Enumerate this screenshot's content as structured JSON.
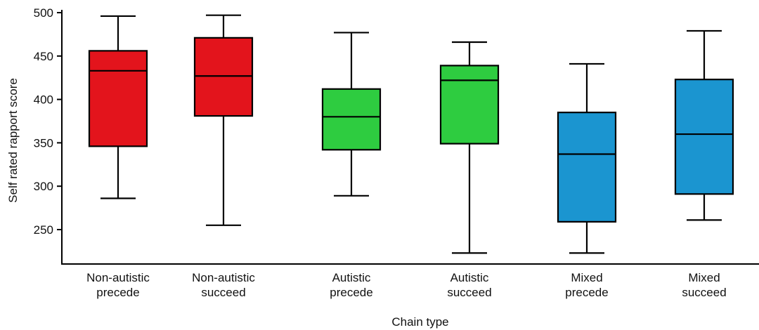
{
  "chart_data": {
    "type": "box",
    "title": "",
    "xlabel": "Chain type",
    "ylabel": "Self rated rapport score",
    "ylim": [
      215,
      500
    ],
    "yticks": [
      250,
      300,
      350,
      400,
      450,
      500
    ],
    "grid": false,
    "categories": [
      [
        "Non-autistic",
        "precede"
      ],
      [
        "Non-autistic",
        "succeed"
      ],
      [
        "Autistic",
        "precede"
      ],
      [
        "Autistic",
        "succeed"
      ],
      [
        "Mixed",
        "precede"
      ],
      [
        "Mixed",
        "succeed"
      ]
    ],
    "boxes": [
      {
        "min": 286,
        "q1": 346,
        "median": 433,
        "q3": 456,
        "max": 496,
        "color": "#e3141c"
      },
      {
        "min": 255,
        "q1": 381,
        "median": 427,
        "q3": 471,
        "max": 497,
        "color": "#e3141c"
      },
      {
        "min": 289,
        "q1": 342,
        "median": 380,
        "q3": 412,
        "max": 477,
        "color": "#2ecc40"
      },
      {
        "min": 223,
        "q1": 349,
        "median": 422,
        "q3": 439,
        "max": 466,
        "color": "#2ecc40"
      },
      {
        "min": 223,
        "q1": 259,
        "median": 337,
        "q3": 385,
        "max": 441,
        "color": "#1b95d0"
      },
      {
        "min": 261,
        "q1": 291,
        "median": 360,
        "q3": 423,
        "max": 479,
        "color": "#1b95d0"
      }
    ]
  }
}
